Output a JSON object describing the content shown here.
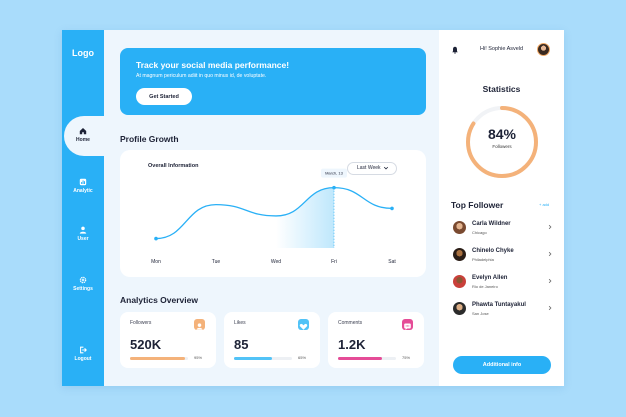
{
  "sidebar": {
    "logo": "Logo",
    "items": [
      {
        "label": "Home",
        "icon": "home-icon"
      },
      {
        "label": "Analytic",
        "icon": "analytics-icon"
      },
      {
        "label": "User",
        "icon": "user-icon"
      },
      {
        "label": "Settings",
        "icon": "gear-icon"
      },
      {
        "label": "Logout",
        "icon": "logout-icon"
      }
    ],
    "active": "Home"
  },
  "banner": {
    "title": "Track your social media performance!",
    "subtitle": "At magnum periculum adiit in quo minus id, de voluptate.",
    "button": "Get Started"
  },
  "profile_growth": {
    "title": "Profile Growth",
    "chart_title": "Overall Information",
    "dropdown": "Last Week",
    "chart_data": {
      "type": "area",
      "categories": [
        "Mon",
        "Tue",
        "Wed",
        "Fri",
        "Sat"
      ],
      "series": [
        {
          "values": [
            10,
            46,
            34,
            64,
            42
          ]
        }
      ],
      "highlight": {
        "category": "Fri",
        "label": "March, 13"
      },
      "grid": false,
      "title": "Overall Information",
      "xlabel": "",
      "ylabel": ""
    }
  },
  "analytics": {
    "title": "Analytics Overview",
    "cards": [
      {
        "label": "Followers",
        "value": "520K",
        "percent_label": "95%",
        "progress": 0.95,
        "color": "#f4b27a",
        "icon": "followers-icon"
      },
      {
        "label": "Likes",
        "value": "85",
        "percent_label": "65%",
        "progress": 0.65,
        "color": "#52c3f7",
        "icon": "heart-icon"
      },
      {
        "label": "Comments",
        "value": "1.2K",
        "percent_label": "75%",
        "progress": 0.75,
        "color": "#e54c97",
        "icon": "comment-icon"
      }
    ]
  },
  "right": {
    "greeting": "Hi! Sophie Asveld",
    "stats_title": "Statistics",
    "stat_value": "84%",
    "stat_label": "Followers",
    "stat_progress": 0.84,
    "top_title": "Top Follower",
    "add_label": "+ add",
    "followers": [
      {
        "name": "Carla Wildner",
        "city": "Chicago"
      },
      {
        "name": "Chinelo Chyke",
        "city": "Philadelphia"
      },
      {
        "name": "Evelyn Allen",
        "city": "Rio de Janeiro"
      },
      {
        "name": "Phawta Tuntayakul",
        "city": "San Jose"
      }
    ],
    "info_button": "Additional info"
  },
  "colors": {
    "accent": "#29b0f6",
    "background": "#a9dcfb",
    "panel": "#eef6fd",
    "ring": "#f4b27a"
  }
}
